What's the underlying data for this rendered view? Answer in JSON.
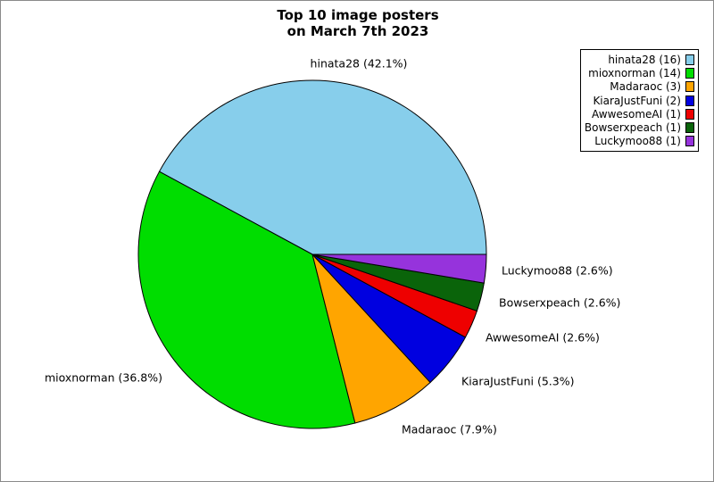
{
  "figure": {
    "title_line1": "Top 10 image posters",
    "title_line2": "on March 7th 2023"
  },
  "chart_data": {
    "type": "pie",
    "title": "Top 10 image posters on March 7th 2023",
    "categories": [
      "hinata28",
      "mioxnorman",
      "Madaraoc",
      "KiaraJustFuni",
      "AwwesomeAI",
      "Bowserxpeach",
      "Luckymoo88"
    ],
    "values": [
      16,
      14,
      3,
      2,
      1,
      1,
      1
    ],
    "percent_labels": [
      "42.1%",
      "36.8%",
      "7.9%",
      "5.3%",
      "2.6%",
      "2.6%",
      "2.6%"
    ],
    "slice_labels": [
      "hinata28 (42.1%)",
      "mioxnorman (36.8%)",
      "Madaraoc (7.9%)",
      "KiaraJustFuni (5.3%)",
      "AwwesomeAI (2.6%)",
      "Bowserxpeach (2.6%)",
      "Luckymoo88 (2.6%)"
    ],
    "colors": [
      "#87CEEB",
      "#00DD00",
      "#FFA500",
      "#0000E0",
      "#EE0000",
      "#0A640A",
      "#9633DC"
    ],
    "start_angle_deg": 0,
    "direction": "counterclockwise",
    "legend_position": "upper right",
    "stroke_color": "#000000"
  },
  "legend": {
    "items": [
      {
        "label": "hinata28 (16)"
      },
      {
        "label": "mioxnorman (14)"
      },
      {
        "label": "Madaraoc (3)"
      },
      {
        "label": "KiaraJustFuni (2)"
      },
      {
        "label": "AwwesomeAI (1)"
      },
      {
        "label": "Bowserxpeach (1)"
      },
      {
        "label": "Luckymoo88 (1)"
      }
    ]
  }
}
